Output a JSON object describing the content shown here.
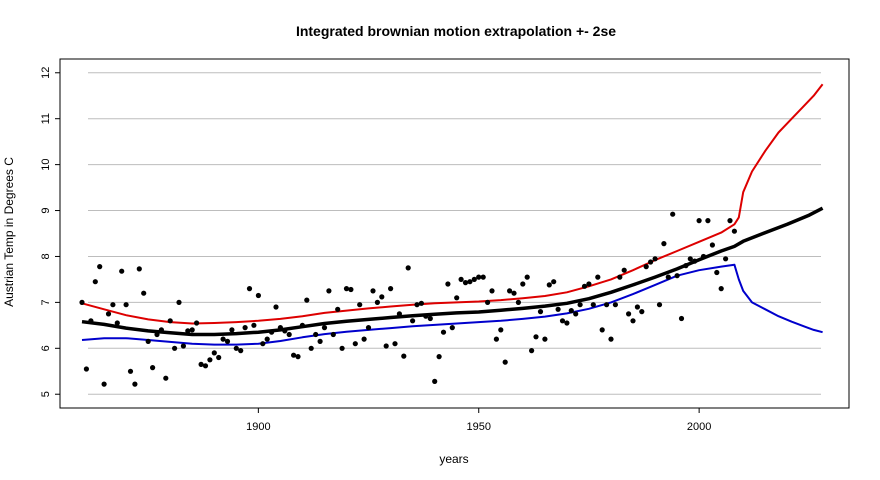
{
  "chart_data": {
    "type": "scatter",
    "title": "Integrated brownian motion extrapolation +- 2se",
    "xlabel": "years",
    "ylabel": "Austrian Temp in Degrees C",
    "xlim": [
      1855,
      2034
    ],
    "ylim": [
      4.7,
      12.3
    ],
    "x_ticks": [
      1900,
      1950,
      2000
    ],
    "y_ticks": [
      5,
      6,
      7,
      8,
      9,
      10,
      11,
      12
    ],
    "grid": "horizontal",
    "colors": {
      "points": "#000000",
      "fit": "#000000",
      "upper": "#dd0000",
      "lower": "#0000cc"
    },
    "points": {
      "x": [
        1860,
        1861,
        1862,
        1863,
        1864,
        1865,
        1866,
        1867,
        1868,
        1869,
        1870,
        1871,
        1872,
        1873,
        1874,
        1875,
        1876,
        1877,
        1878,
        1879,
        1880,
        1881,
        1882,
        1883,
        1884,
        1885,
        1886,
        1887,
        1888,
        1889,
        1890,
        1891,
        1892,
        1893,
        1894,
        1895,
        1896,
        1897,
        1898,
        1899,
        1900,
        1901,
        1902,
        1903,
        1904,
        1905,
        1906,
        1907,
        1908,
        1909,
        1910,
        1911,
        1912,
        1913,
        1914,
        1915,
        1916,
        1917,
        1918,
        1919,
        1920,
        1921,
        1922,
        1923,
        1924,
        1925,
        1926,
        1927,
        1928,
        1929,
        1930,
        1931,
        1932,
        1933,
        1934,
        1935,
        1936,
        1937,
        1938,
        1939,
        1940,
        1941,
        1942,
        1943,
        1944,
        1945,
        1946,
        1947,
        1948,
        1949,
        1950,
        1951,
        1952,
        1953,
        1954,
        1955,
        1956,
        1957,
        1958,
        1959,
        1960,
        1961,
        1962,
        1963,
        1964,
        1965,
        1966,
        1967,
        1968,
        1969,
        1970,
        1971,
        1972,
        1973,
        1974,
        1975,
        1976,
        1977,
        1978,
        1979,
        1980,
        1981,
        1982,
        1983,
        1984,
        1985,
        1986,
        1987,
        1988,
        1989,
        1990,
        1991,
        1992,
        1993,
        1994,
        1995,
        1996,
        1997,
        1998,
        1999,
        2000,
        2001,
        2002,
        2003,
        2004,
        2005,
        2006,
        2007,
        2008
      ],
      "y": [
        7.0,
        5.55,
        6.6,
        7.45,
        7.78,
        5.22,
        6.75,
        6.95,
        6.55,
        7.68,
        6.95,
        5.5,
        5.22,
        7.73,
        7.2,
        6.15,
        5.58,
        6.3,
        6.4,
        5.35,
        6.6,
        6.0,
        7.0,
        6.05,
        6.38,
        6.4,
        6.55,
        5.65,
        5.62,
        5.75,
        5.9,
        5.8,
        6.2,
        6.15,
        6.4,
        6.0,
        5.95,
        6.45,
        7.3,
        6.5,
        7.15,
        6.1,
        6.2,
        6.35,
        6.9,
        6.45,
        6.38,
        6.3,
        5.85,
        5.82,
        6.5,
        7.05,
        6.0,
        6.3,
        6.15,
        6.45,
        7.25,
        6.3,
        6.85,
        6.0,
        7.3,
        7.28,
        6.1,
        6.95,
        6.2,
        6.45,
        7.25,
        7.0,
        7.12,
        6.05,
        7.3,
        6.1,
        6.75,
        5.83,
        7.75,
        6.6,
        6.95,
        6.98,
        6.7,
        6.65,
        5.28,
        5.82,
        6.35,
        7.4,
        6.45,
        7.1,
        7.5,
        7.43,
        7.45,
        7.5,
        7.55,
        7.55,
        7.0,
        7.25,
        6.2,
        6.4,
        5.7,
        7.25,
        7.2,
        7.0,
        7.4,
        7.55,
        5.95,
        6.25,
        6.8,
        6.2,
        7.38,
        7.45,
        6.85,
        6.6,
        6.55,
        6.82,
        6.75,
        6.95,
        7.35,
        7.4,
        6.95,
        7.55,
        6.4,
        6.95,
        6.2,
        6.95,
        7.55,
        7.7,
        6.75,
        6.6,
        6.9,
        6.8,
        7.78,
        7.88,
        7.95,
        6.95,
        8.28,
        7.55,
        8.92,
        7.58,
        6.65,
        7.8,
        7.95,
        7.9,
        8.78,
        8.0,
        8.78,
        8.25,
        7.65,
        7.3,
        7.95,
        8.78,
        8.55
      ],
      "marker": "filled-circle"
    },
    "series": [
      {
        "role": "fit",
        "x": [
          1860,
          1865,
          1870,
          1875,
          1880,
          1885,
          1890,
          1895,
          1900,
          1905,
          1910,
          1915,
          1920,
          1925,
          1930,
          1935,
          1940,
          1945,
          1950,
          1955,
          1960,
          1965,
          1970,
          1975,
          1980,
          1985,
          1990,
          1995,
          2000,
          2005,
          2008,
          2010,
          2015,
          2020,
          2025,
          2028
        ],
        "y": [
          6.58,
          6.52,
          6.44,
          6.38,
          6.34,
          6.3,
          6.3,
          6.32,
          6.35,
          6.4,
          6.47,
          6.54,
          6.59,
          6.63,
          6.67,
          6.71,
          6.74,
          6.77,
          6.79,
          6.83,
          6.87,
          6.92,
          6.98,
          7.08,
          7.22,
          7.38,
          7.55,
          7.73,
          7.93,
          8.12,
          8.22,
          8.33,
          8.52,
          8.7,
          8.9,
          9.05
        ]
      },
      {
        "role": "upper",
        "x": [
          1860,
          1865,
          1870,
          1875,
          1880,
          1885,
          1890,
          1895,
          1900,
          1905,
          1910,
          1915,
          1920,
          1925,
          1930,
          1935,
          1940,
          1945,
          1950,
          1955,
          1960,
          1965,
          1970,
          1975,
          1980,
          1985,
          1990,
          1995,
          2000,
          2005,
          2008,
          2009,
          2010,
          2012,
          2015,
          2018,
          2021,
          2024,
          2026,
          2028
        ],
        "y": [
          6.98,
          6.85,
          6.72,
          6.63,
          6.57,
          6.54,
          6.55,
          6.57,
          6.6,
          6.64,
          6.7,
          6.77,
          6.82,
          6.87,
          6.91,
          6.95,
          6.98,
          7.0,
          7.02,
          7.05,
          7.09,
          7.14,
          7.22,
          7.35,
          7.5,
          7.7,
          7.92,
          8.12,
          8.32,
          8.52,
          8.7,
          8.85,
          9.4,
          9.85,
          10.3,
          10.7,
          11.0,
          11.3,
          11.5,
          11.75
        ]
      },
      {
        "role": "lower",
        "x": [
          1860,
          1865,
          1870,
          1875,
          1880,
          1885,
          1890,
          1895,
          1900,
          1905,
          1910,
          1915,
          1920,
          1925,
          1930,
          1935,
          1940,
          1945,
          1950,
          1955,
          1960,
          1965,
          1970,
          1975,
          1980,
          1985,
          1990,
          1995,
          2000,
          2005,
          2008,
          2009,
          2010,
          2012,
          2015,
          2018,
          2021,
          2024,
          2026,
          2028
        ],
        "y": [
          6.18,
          6.22,
          6.22,
          6.18,
          6.14,
          6.1,
          6.08,
          6.08,
          6.1,
          6.16,
          6.24,
          6.31,
          6.36,
          6.4,
          6.44,
          6.48,
          6.51,
          6.54,
          6.57,
          6.6,
          6.64,
          6.69,
          6.76,
          6.86,
          7.0,
          7.18,
          7.38,
          7.58,
          7.7,
          7.78,
          7.82,
          7.5,
          7.25,
          7.0,
          6.85,
          6.7,
          6.58,
          6.47,
          6.4,
          6.35
        ]
      }
    ]
  }
}
